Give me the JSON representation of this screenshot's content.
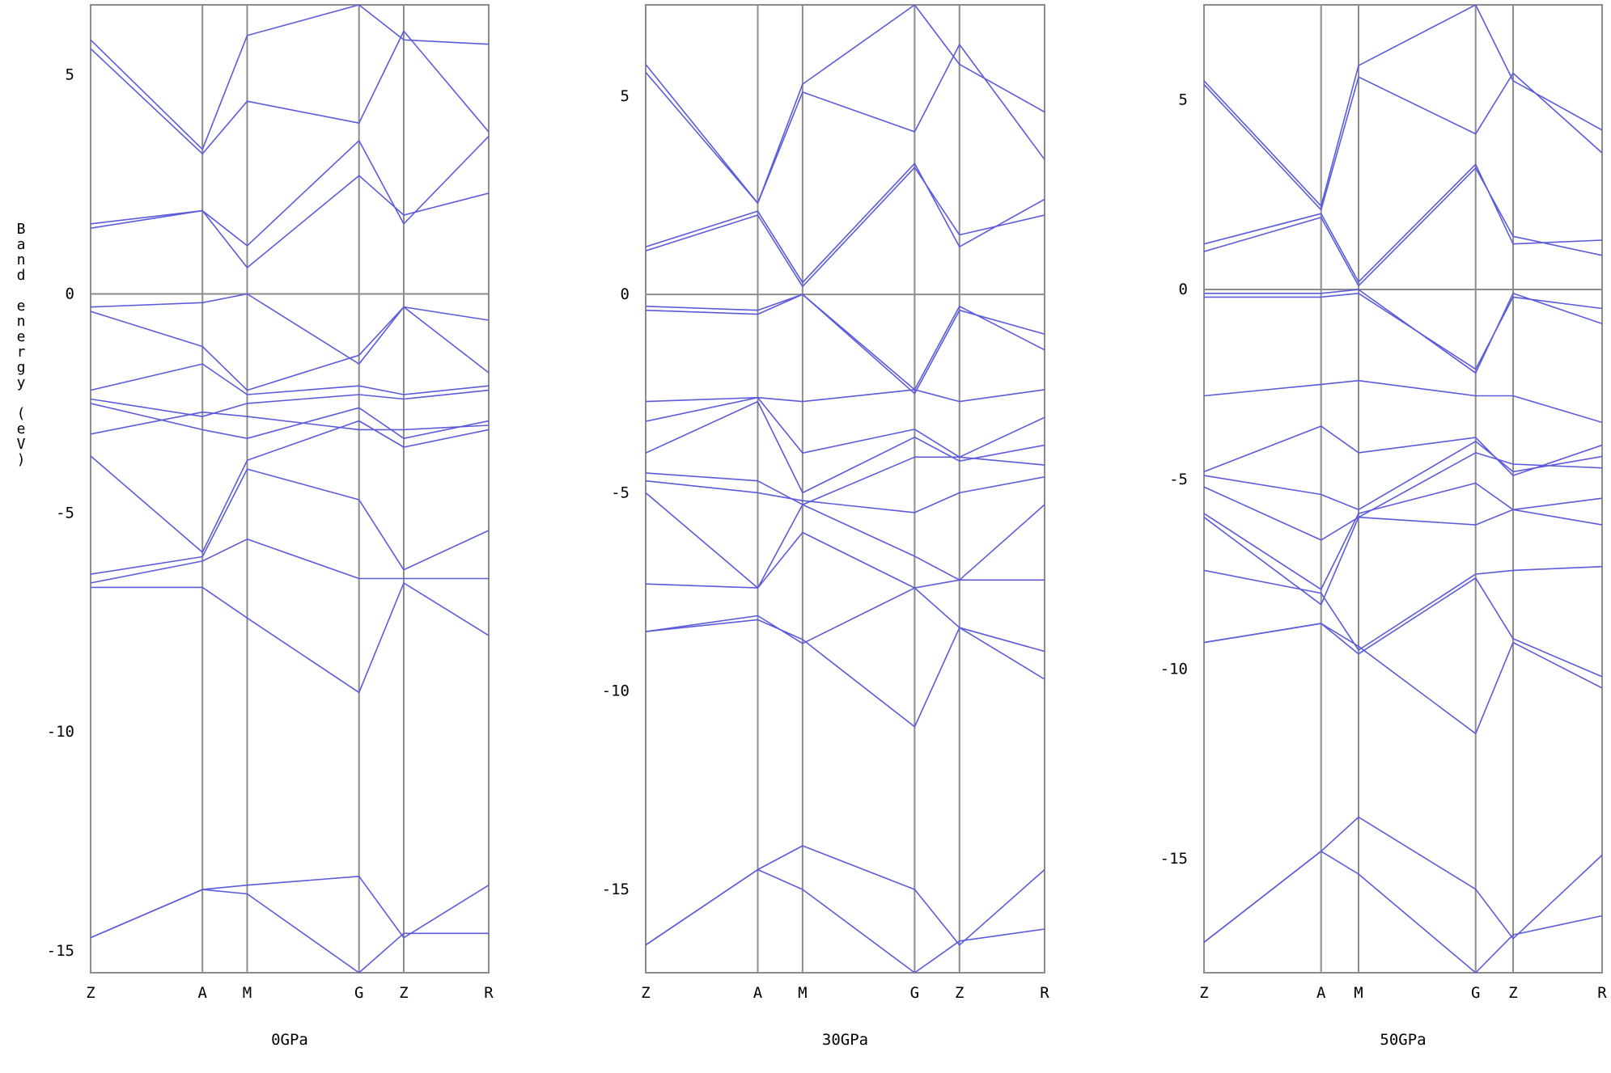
{
  "chart_data": [
    {
      "type": "line",
      "title": "0GPa",
      "ylabel": "Band energy (eV)",
      "ylim": [
        -15.5,
        6.6
      ],
      "y_ticks": [
        5,
        0,
        -5,
        -10,
        -15
      ],
      "x": [
        0,
        2.5,
        3.5,
        6.0,
        7.0,
        8.9
      ],
      "x_tick_labels": [
        "Z",
        "A",
        "M",
        "G",
        "Z",
        "R"
      ],
      "vertical_lines_at": [
        2.5,
        3.5,
        6.0,
        7.0
      ],
      "series": [
        {
          "values": [
            5.8,
            3.3,
            5.9,
            6.6,
            5.8,
            5.7
          ]
        },
        {
          "values": [
            5.6,
            3.2,
            4.4,
            3.9,
            6.0,
            3.7
          ]
        },
        {
          "values": [
            1.6,
            1.9,
            1.1,
            3.5,
            1.6,
            3.6
          ]
        },
        {
          "values": [
            1.5,
            1.9,
            0.6,
            2.7,
            1.8,
            2.3
          ]
        },
        {
          "values": [
            -0.3,
            -0.2,
            0.0,
            -1.6,
            -0.3,
            -0.6
          ]
        },
        {
          "values": [
            -0.4,
            -1.2,
            -2.2,
            -1.4,
            -0.3,
            -1.8
          ]
        },
        {
          "values": [
            -2.2,
            -1.6,
            -2.3,
            -2.1,
            -2.3,
            -2.1
          ]
        },
        {
          "values": [
            -2.4,
            -2.8,
            -2.5,
            -2.3,
            -2.4,
            -2.2
          ]
        },
        {
          "values": [
            -2.5,
            -3.1,
            -3.3,
            -2.6,
            -3.3,
            -2.9
          ]
        },
        {
          "values": [
            -3.2,
            -2.7,
            -2.8,
            -3.1,
            -3.1,
            -3.0
          ]
        },
        {
          "values": [
            -3.7,
            -5.9,
            -3.8,
            -2.9,
            -3.5,
            -3.1
          ]
        },
        {
          "values": [
            -6.4,
            -6.0,
            -4.0,
            -4.7,
            -6.3,
            -5.4
          ]
        },
        {
          "values": [
            -6.6,
            -6.1,
            -5.6,
            -6.5,
            -6.5,
            -6.5
          ]
        },
        {
          "values": [
            -6.7,
            -6.7,
            -7.4,
            -9.1,
            -6.6,
            -7.8
          ]
        },
        {
          "values": [
            -14.7,
            -13.6,
            -13.5,
            -13.3,
            -14.7,
            -13.5
          ]
        },
        {
          "values": [
            -14.7,
            -13.6,
            -13.7,
            -15.5,
            -14.6,
            -14.6
          ]
        }
      ]
    },
    {
      "type": "line",
      "title": "30GPa",
      "ylabel": "",
      "ylim": [
        -17.1,
        7.3
      ],
      "y_ticks": [
        5,
        0,
        -5,
        -10,
        -15
      ],
      "x": [
        0,
        2.5,
        3.5,
        6.0,
        7.0,
        8.9
      ],
      "x_tick_labels": [
        "Z",
        "A",
        "M",
        "G",
        "Z",
        "R"
      ],
      "vertical_lines_at": [
        2.5,
        3.5,
        6.0,
        7.0
      ],
      "series": [
        {
          "values": [
            5.8,
            2.3,
            5.3,
            7.3,
            5.8,
            4.6
          ]
        },
        {
          "values": [
            5.6,
            2.3,
            5.1,
            4.1,
            6.3,
            3.4
          ]
        },
        {
          "values": [
            1.2,
            2.1,
            0.3,
            3.3,
            1.2,
            2.4
          ]
        },
        {
          "values": [
            1.1,
            2.0,
            0.2,
            3.2,
            1.5,
            2.0
          ]
        },
        {
          "values": [
            -0.3,
            -0.4,
            0.0,
            -2.4,
            -0.3,
            -1.4
          ]
        },
        {
          "values": [
            -0.4,
            -0.5,
            0.0,
            -2.5,
            -0.4,
            -1.0
          ]
        },
        {
          "values": [
            -2.7,
            -2.6,
            -2.7,
            -2.4,
            -2.7,
            -2.4
          ]
        },
        {
          "values": [
            -3.2,
            -2.6,
            -4.0,
            -3.4,
            -4.1,
            -3.1
          ]
        },
        {
          "values": [
            -4.0,
            -2.7,
            -5.0,
            -3.6,
            -4.2,
            -3.8
          ]
        },
        {
          "values": [
            -4.5,
            -4.7,
            -5.3,
            -4.1,
            -4.1,
            -4.3
          ]
        },
        {
          "values": [
            -4.7,
            -5.0,
            -5.2,
            -5.5,
            -5.0,
            -4.6
          ]
        },
        {
          "values": [
            -5.0,
            -7.4,
            -5.3,
            -6.6,
            -7.2,
            -5.3
          ]
        },
        {
          "values": [
            -7.3,
            -7.4,
            -6.0,
            -7.4,
            -7.2,
            -7.2
          ]
        },
        {
          "values": [
            -8.5,
            -8.1,
            -8.8,
            -7.4,
            -8.4,
            -9.0
          ]
        },
        {
          "values": [
            -8.5,
            -8.2,
            -8.7,
            -10.9,
            -8.4,
            -9.7
          ]
        },
        {
          "values": [
            -16.4,
            -14.5,
            -13.9,
            -15.0,
            -16.4,
            -14.5
          ]
        },
        {
          "values": [
            -16.4,
            -14.5,
            -15.0,
            -17.1,
            -16.3,
            -16.0
          ]
        }
      ]
    },
    {
      "type": "line",
      "title": "50GPa",
      "ylabel": "",
      "ylim": [
        -18.0,
        7.5
      ],
      "y_ticks": [
        5,
        0,
        -5,
        -10,
        -15
      ],
      "x": [
        0,
        2.5,
        3.3,
        5.8,
        6.6,
        8.5
      ],
      "x_tick_labels": [
        "Z",
        "A",
        "M",
        "G",
        "Z",
        "R"
      ],
      "vertical_lines_at": [
        2.5,
        3.3,
        5.8,
        6.6
      ],
      "series": [
        {
          "values": [
            5.5,
            2.2,
            5.9,
            7.5,
            5.5,
            4.2
          ]
        },
        {
          "values": [
            5.4,
            2.1,
            5.6,
            4.1,
            5.7,
            3.6
          ]
        },
        {
          "values": [
            1.2,
            2.0,
            0.2,
            3.3,
            1.2,
            1.3
          ]
        },
        {
          "values": [
            1.0,
            1.9,
            0.1,
            3.2,
            1.4,
            0.9
          ]
        },
        {
          "values": [
            -0.1,
            -0.1,
            0.0,
            -2.2,
            -0.1,
            -0.9
          ]
        },
        {
          "values": [
            -0.2,
            -0.2,
            -0.1,
            -2.1,
            -0.2,
            -0.5
          ]
        },
        {
          "values": [
            -2.8,
            -2.5,
            -2.4,
            -2.8,
            -2.8,
            -3.5
          ]
        },
        {
          "values": [
            -4.8,
            -3.6,
            -4.3,
            -3.9,
            -4.9,
            -4.1
          ]
        },
        {
          "values": [
            -4.9,
            -5.4,
            -5.8,
            -4.0,
            -4.8,
            -4.4
          ]
        },
        {
          "values": [
            -5.2,
            -6.6,
            -6.0,
            -4.3,
            -4.6,
            -4.7
          ]
        },
        {
          "values": [
            -5.9,
            -7.9,
            -5.9,
            -5.1,
            -5.8,
            -5.5
          ]
        },
        {
          "values": [
            -6.0,
            -8.3,
            -6.0,
            -6.2,
            -5.8,
            -6.2
          ]
        },
        {
          "values": [
            -7.4,
            -8.0,
            -9.5,
            -7.5,
            -7.4,
            -7.3
          ]
        },
        {
          "values": [
            -9.3,
            -8.8,
            -9.6,
            -7.6,
            -9.2,
            -10.2
          ]
        },
        {
          "values": [
            -9.3,
            -8.8,
            -9.4,
            -11.7,
            -9.3,
            -10.5
          ]
        },
        {
          "values": [
            -17.2,
            -14.8,
            -13.9,
            -15.8,
            -17.1,
            -14.9
          ]
        },
        {
          "values": [
            -17.2,
            -14.8,
            -15.4,
            -18.0,
            -17.0,
            -16.5
          ]
        }
      ]
    }
  ],
  "colors": {
    "band_line": "#5b5bdc",
    "grid_line": "#8c8c8c",
    "background": "#ffffff"
  }
}
